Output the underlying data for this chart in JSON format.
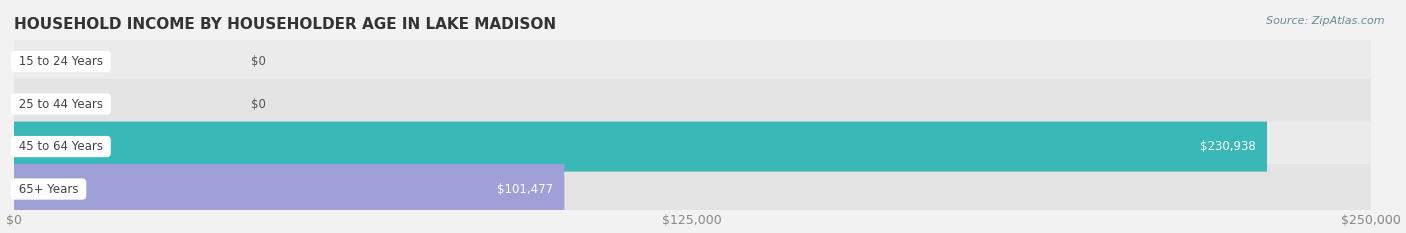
{
  "title": "HOUSEHOLD INCOME BY HOUSEHOLDER AGE IN LAKE MADISON",
  "source": "Source: ZipAtlas.com",
  "categories": [
    "15 to 24 Years",
    "25 to 44 Years",
    "45 to 64 Years",
    "65+ Years"
  ],
  "values": [
    0,
    0,
    230938,
    101477
  ],
  "bar_colors": [
    "#a8c0dc",
    "#ccaac8",
    "#3ab8b8",
    "#a0a0d8"
  ],
  "bar_labels": [
    "$0",
    "$0",
    "$230,938",
    "$101,477"
  ],
  "xlim": [
    0,
    250000
  ],
  "xticks": [
    0,
    125000,
    250000
  ],
  "xticklabels": [
    "$0",
    "$125,000",
    "$250,000"
  ],
  "bg_color": "#f2f2f2",
  "bar_bg_color": "#e0e0e0",
  "title_color": "#333333",
  "source_color": "#6a8a9a",
  "label_fontsize": 8.5,
  "title_fontsize": 11,
  "bar_height": 0.62,
  "label_color_inside": "#ffffff",
  "label_color_outside": "#555555",
  "row_bg_colors": [
    "#ebebeb",
    "#e4e4e4",
    "#ebebeb",
    "#e4e4e4"
  ]
}
